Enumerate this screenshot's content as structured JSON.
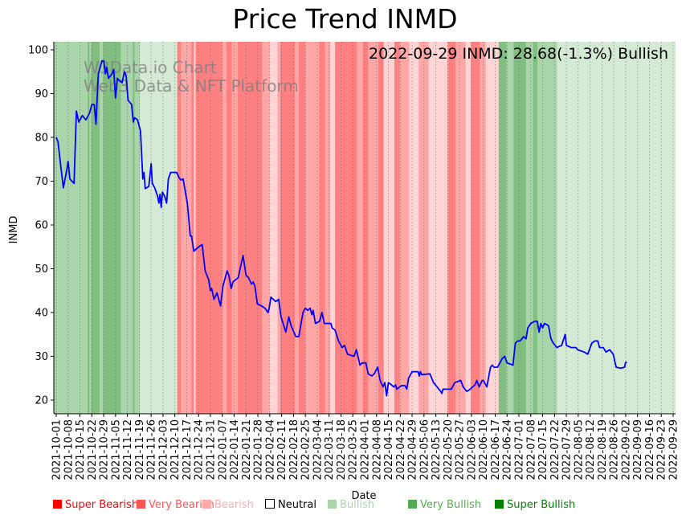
{
  "chart_data": {
    "type": "line",
    "title": "Price Trend INMD",
    "xlabel": "Date",
    "ylabel": "INMD",
    "ylim": [
      17,
      102
    ],
    "yticks": [
      20,
      30,
      40,
      50,
      60,
      70,
      80,
      90,
      100
    ],
    "annotation": "2022-09-29 INMD: 28.68(-1.3%) Bullish",
    "watermark": [
      "W3Data.io Chart",
      "Web3 Data & NFT Platform"
    ],
    "line_color": "#0000ff",
    "xticks": [
      "2021-10-01",
      "2021-10-08",
      "2021-10-15",
      "2021-10-22",
      "2021-10-29",
      "2021-11-05",
      "2021-11-12",
      "2021-11-19",
      "2021-11-26",
      "2021-12-03",
      "2021-12-10",
      "2021-12-17",
      "2021-12-24",
      "2021-12-31",
      "2022-01-07",
      "2022-01-14",
      "2022-01-21",
      "2022-01-28",
      "2022-02-04",
      "2022-02-11",
      "2022-02-18",
      "2022-02-25",
      "2022-03-04",
      "2022-03-11",
      "2022-03-18",
      "2022-03-25",
      "2022-04-01",
      "2022-04-08",
      "2022-04-15",
      "2022-04-22",
      "2022-04-29",
      "2022-05-06",
      "2022-05-13",
      "2022-05-20",
      "2022-05-27",
      "2022-06-03",
      "2022-06-10",
      "2022-06-17",
      "2022-06-24",
      "2022-07-01",
      "2022-07-08",
      "2022-07-15",
      "2022-07-22",
      "2022-07-29",
      "2022-08-05",
      "2022-08-12",
      "2022-08-19",
      "2022-08-26",
      "2022-09-02",
      "2022-09-09",
      "2022-09-16",
      "2022-09-23",
      "2022-09-29"
    ],
    "series": [
      {
        "name": "INMD",
        "points": [
          [
            0,
            80
          ],
          [
            0.15,
            79
          ],
          [
            0.4,
            73
          ],
          [
            0.6,
            68.5
          ],
          [
            0.85,
            72
          ],
          [
            1.0,
            74.5
          ],
          [
            1.15,
            70.5
          ],
          [
            1.5,
            69.5
          ],
          [
            1.7,
            86
          ],
          [
            1.9,
            83.5
          ],
          [
            2.2,
            85
          ],
          [
            2.5,
            84
          ],
          [
            2.8,
            85.5
          ],
          [
            3.0,
            87.5
          ],
          [
            3.2,
            87.5
          ],
          [
            3.35,
            83
          ],
          [
            3.55,
            94.5
          ],
          [
            3.85,
            97.5
          ],
          [
            4.0,
            97.5
          ],
          [
            4.15,
            94.5
          ],
          [
            4.25,
            96
          ],
          [
            4.4,
            93.5
          ],
          [
            4.7,
            94.5
          ],
          [
            4.85,
            95.5
          ],
          [
            5.0,
            89
          ],
          [
            5.15,
            93.5
          ],
          [
            5.3,
            93
          ],
          [
            5.55,
            92.5
          ],
          [
            5.75,
            95
          ],
          [
            5.9,
            94
          ],
          [
            6.05,
            88.5
          ],
          [
            6.35,
            87.5
          ],
          [
            6.5,
            83.5
          ],
          [
            6.6,
            84.5
          ],
          [
            6.85,
            84
          ],
          [
            7.1,
            81.5
          ],
          [
            7.3,
            70.5
          ],
          [
            7.4,
            72
          ],
          [
            7.5,
            68.3
          ],
          [
            7.8,
            68.8
          ],
          [
            8.0,
            74
          ],
          [
            8.1,
            69.5
          ],
          [
            8.3,
            68.5
          ],
          [
            8.55,
            66.5
          ],
          [
            8.65,
            65
          ],
          [
            8.75,
            67
          ],
          [
            8.85,
            64
          ],
          [
            8.95,
            67.5
          ],
          [
            9.15,
            66.5
          ],
          [
            9.3,
            65
          ],
          [
            9.45,
            70.5
          ],
          [
            9.65,
            72
          ],
          [
            10.15,
            72
          ],
          [
            10.35,
            70.8
          ],
          [
            10.5,
            70.3
          ],
          [
            10.7,
            70.5
          ],
          [
            11.05,
            65
          ],
          [
            11.3,
            57.5
          ],
          [
            11.4,
            57.5
          ],
          [
            11.6,
            54
          ],
          [
            12.0,
            55
          ],
          [
            12.3,
            55.5
          ],
          [
            12.55,
            49.5
          ],
          [
            12.85,
            47.5
          ],
          [
            13.0,
            45
          ],
          [
            13.1,
            45.5
          ],
          [
            13.3,
            43
          ],
          [
            13.55,
            44.5
          ],
          [
            13.65,
            43.5
          ],
          [
            13.85,
            41.5
          ],
          [
            14.05,
            46
          ],
          [
            14.4,
            49.5
          ],
          [
            14.55,
            48.5
          ],
          [
            14.75,
            45.5
          ],
          [
            14.9,
            47
          ],
          [
            15.35,
            48
          ],
          [
            15.5,
            50
          ],
          [
            15.75,
            53
          ],
          [
            16.0,
            48.5
          ],
          [
            16.2,
            48
          ],
          [
            16.45,
            46.5
          ],
          [
            16.6,
            47
          ],
          [
            16.75,
            46
          ],
          [
            16.95,
            42
          ],
          [
            17.3,
            41.5
          ],
          [
            17.6,
            41
          ],
          [
            17.85,
            40
          ],
          [
            17.95,
            41
          ],
          [
            18.1,
            43.5
          ],
          [
            18.5,
            42.5
          ],
          [
            18.75,
            43
          ],
          [
            18.95,
            39
          ],
          [
            19.35,
            35.5
          ],
          [
            19.6,
            39
          ],
          [
            19.8,
            37
          ],
          [
            20.2,
            34.5
          ],
          [
            20.45,
            34.5
          ],
          [
            20.8,
            40
          ],
          [
            21.0,
            41
          ],
          [
            21.2,
            40.5
          ],
          [
            21.4,
            41
          ],
          [
            21.55,
            39.5
          ],
          [
            21.65,
            40.5
          ],
          [
            21.85,
            37.5
          ],
          [
            22.2,
            38
          ],
          [
            22.4,
            40
          ],
          [
            22.6,
            37.5
          ],
          [
            22.9,
            37.5
          ],
          [
            23.15,
            37.5
          ],
          [
            23.25,
            36.5
          ],
          [
            23.5,
            36
          ],
          [
            23.8,
            33.5
          ],
          [
            24.1,
            32
          ],
          [
            24.3,
            32.5
          ],
          [
            24.55,
            30.5
          ],
          [
            25.1,
            30
          ],
          [
            25.3,
            31.5
          ],
          [
            25.6,
            28
          ],
          [
            25.8,
            28.5
          ],
          [
            26.1,
            28.5
          ],
          [
            26.3,
            26
          ],
          [
            26.6,
            25.5
          ],
          [
            26.8,
            26
          ],
          [
            27.1,
            27.5
          ],
          [
            27.3,
            24.5
          ],
          [
            27.55,
            23
          ],
          [
            27.7,
            24
          ],
          [
            27.85,
            21
          ],
          [
            28.0,
            24
          ],
          [
            28.25,
            23.5
          ],
          [
            28.45,
            23
          ],
          [
            28.6,
            23.5
          ],
          [
            28.7,
            22.5
          ],
          [
            29.1,
            23.3
          ],
          [
            29.4,
            23.3
          ],
          [
            29.55,
            22.5
          ],
          [
            29.7,
            25
          ],
          [
            30.0,
            26.5
          ],
          [
            30.5,
            26.5
          ],
          [
            30.6,
            25.5
          ],
          [
            30.7,
            26.5
          ],
          [
            30.8,
            25.8
          ],
          [
            31.5,
            26
          ],
          [
            31.8,
            24
          ],
          [
            32.1,
            23
          ],
          [
            32.4,
            22
          ],
          [
            32.5,
            21.5
          ],
          [
            32.6,
            22.5
          ],
          [
            33.3,
            22.5
          ],
          [
            33.6,
            24
          ],
          [
            34.1,
            24.5
          ],
          [
            34.3,
            23
          ],
          [
            34.6,
            22
          ],
          [
            34.8,
            22.3
          ],
          [
            35.3,
            23.5
          ],
          [
            35.45,
            24.5
          ],
          [
            35.65,
            23
          ],
          [
            35.9,
            24.5
          ],
          [
            36.0,
            24.5
          ],
          [
            36.3,
            23
          ],
          [
            36.6,
            27.5
          ],
          [
            36.75,
            28
          ],
          [
            36.9,
            27.5
          ],
          [
            37.2,
            27.5
          ],
          [
            37.6,
            29.5
          ],
          [
            37.8,
            30
          ],
          [
            38.0,
            28.5
          ],
          [
            38.5,
            28
          ],
          [
            38.7,
            33
          ],
          [
            38.9,
            33.5
          ],
          [
            39.1,
            33.5
          ],
          [
            39.4,
            34.5
          ],
          [
            39.6,
            34
          ],
          [
            39.75,
            36.5
          ],
          [
            40.0,
            37.5
          ],
          [
            40.35,
            38
          ],
          [
            40.55,
            38
          ],
          [
            40.7,
            35.5
          ],
          [
            40.85,
            37.5
          ],
          [
            41.0,
            36.5
          ],
          [
            41.15,
            37.5
          ],
          [
            41.5,
            37
          ],
          [
            41.7,
            34
          ],
          [
            41.9,
            33
          ],
          [
            42.2,
            32
          ],
          [
            42.6,
            32.5
          ],
          [
            42.9,
            35
          ],
          [
            43.0,
            32.5
          ],
          [
            43.4,
            32
          ],
          [
            43.8,
            32
          ],
          [
            43.95,
            31.5
          ],
          [
            44.5,
            31
          ],
          [
            44.8,
            30.5
          ],
          [
            45.15,
            33
          ],
          [
            45.4,
            33.5
          ],
          [
            45.65,
            33.5
          ],
          [
            45.8,
            32
          ],
          [
            46.1,
            32
          ],
          [
            46.35,
            31
          ],
          [
            46.65,
            31.5
          ],
          [
            46.95,
            30.5
          ],
          [
            47.2,
            27.5
          ],
          [
            47.6,
            27.3
          ],
          [
            47.9,
            27.5
          ],
          [
            48.0,
            28.6
          ],
          [
            48.1,
            28.68
          ]
        ]
      }
    ],
    "sentiment_bands": [
      [
        0,
        2.65,
        "bullish"
      ],
      [
        2.65,
        2.8,
        "very_bullish"
      ],
      [
        2.8,
        2.95,
        "bullish"
      ],
      [
        2.95,
        3.65,
        "very_bullish"
      ],
      [
        3.65,
        3.95,
        "bullish"
      ],
      [
        3.95,
        5.45,
        "very_bullish"
      ],
      [
        5.45,
        6.45,
        "bullish"
      ],
      [
        6.45,
        6.6,
        "very_bullish"
      ],
      [
        6.6,
        7.05,
        "bullish"
      ],
      [
        7.05,
        10.2,
        "light_bullish"
      ],
      [
        10.2,
        10.5,
        "very_bearish"
      ],
      [
        10.5,
        11.4,
        "bearish"
      ],
      [
        11.4,
        11.6,
        "very_bearish"
      ],
      [
        11.6,
        11.75,
        "light_bearish"
      ],
      [
        11.75,
        13.25,
        "very_bearish"
      ],
      [
        13.25,
        14.0,
        "very_bearish"
      ],
      [
        14.0,
        14.35,
        "bearish"
      ],
      [
        14.35,
        14.8,
        "very_bearish"
      ],
      [
        14.8,
        15.3,
        "bearish"
      ],
      [
        15.3,
        15.6,
        "very_bearish"
      ],
      [
        15.6,
        17.35,
        "very_bearish"
      ],
      [
        17.35,
        18.0,
        "bearish"
      ],
      [
        18.0,
        18.65,
        "light_bearish"
      ],
      [
        18.65,
        18.9,
        "bearish"
      ],
      [
        18.9,
        20.1,
        "very_bearish"
      ],
      [
        20.1,
        20.45,
        "bearish"
      ],
      [
        20.45,
        21.0,
        "very_bearish"
      ],
      [
        21.0,
        22.15,
        "bearish"
      ],
      [
        22.15,
        22.65,
        "very_bearish"
      ],
      [
        22.65,
        23.1,
        "bearish"
      ],
      [
        23.1,
        23.5,
        "light_bearish"
      ],
      [
        23.5,
        25.35,
        "very_bearish"
      ],
      [
        25.35,
        25.85,
        "bearish"
      ],
      [
        25.85,
        26.3,
        "very_bearish"
      ],
      [
        26.3,
        27.15,
        "bearish"
      ],
      [
        27.15,
        27.6,
        "very_bearish"
      ],
      [
        27.6,
        28.5,
        "light_bearish"
      ],
      [
        28.5,
        28.95,
        "very_bearish"
      ],
      [
        28.95,
        29.75,
        "bearish"
      ],
      [
        29.75,
        30.55,
        "light_bearish"
      ],
      [
        30.55,
        31.4,
        "bearish"
      ],
      [
        31.4,
        33.0,
        "light_bearish"
      ],
      [
        33.0,
        33.65,
        "very_bearish"
      ],
      [
        33.65,
        34.5,
        "bearish"
      ],
      [
        34.5,
        34.95,
        "light_bearish"
      ],
      [
        34.95,
        35.7,
        "very_bearish"
      ],
      [
        35.7,
        36.2,
        "bearish"
      ],
      [
        36.2,
        37.3,
        "light_bearish"
      ],
      [
        37.3,
        37.95,
        "very_bullish"
      ],
      [
        37.95,
        38.55,
        "bullish"
      ],
      [
        38.55,
        39.6,
        "very_bullish"
      ],
      [
        39.6,
        40.2,
        "bullish"
      ],
      [
        40.2,
        40.55,
        "very_bullish"
      ],
      [
        40.55,
        42.2,
        "bullish"
      ],
      [
        42.2,
        48.1,
        "light_bullish"
      ]
    ],
    "legend": [
      {
        "label": "Super Bearish",
        "color": "#ff0000",
        "text_color": "#ff0000"
      },
      {
        "label": "Very Bearish",
        "color": "#ff5555",
        "text_color": "#ff5555"
      },
      {
        "label": "Bearish",
        "color": "#ffaaaa",
        "text_color": "#ffaaaa"
      },
      {
        "label": "Neutral",
        "color": "#ffffff",
        "text_color": "#000000"
      },
      {
        "label": "Bullish",
        "color": "#a9d5a9",
        "text_color": "#a9d5a9"
      },
      {
        "label": "Very Bullish",
        "color": "#55aa55",
        "text_color": "#55aa55"
      },
      {
        "label": "Super Bullish",
        "color": "#008000",
        "text_color": "#008000"
      }
    ],
    "band_colors": {
      "very_bearish": "#ff8080",
      "bearish": "#ffa6a6",
      "light_bearish": "#ffd4d4",
      "bullish": "#aad5aa",
      "very_bullish": "#80bf80",
      "light_bullish": "#d4ead4"
    },
    "legend_placement": "bottom"
  }
}
